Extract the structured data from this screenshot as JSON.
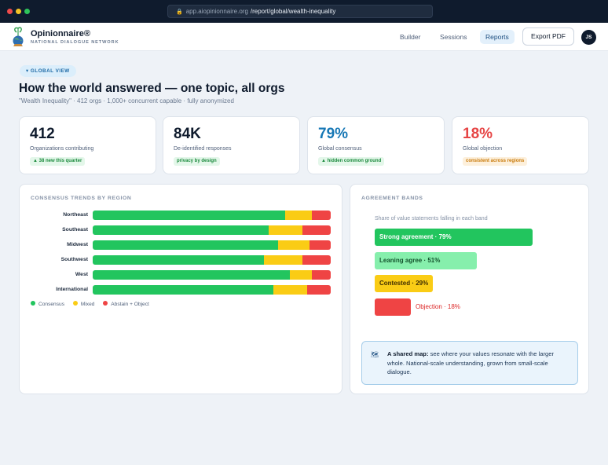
{
  "browser": {
    "url_host": "app.aiopinionnaire.org",
    "url_path": "/report/global/wealth-inequality"
  },
  "brand": {
    "name": "Opinionnaire®",
    "tagline": "NATIONAL DIALOGUE NETWORK"
  },
  "nav": {
    "items": [
      {
        "label": "Builder",
        "active": false
      },
      {
        "label": "Sessions",
        "active": false
      },
      {
        "label": "Reports",
        "active": true
      }
    ],
    "export_label": "Export PDF",
    "avatar_initials": "JS"
  },
  "page": {
    "view_pill": "▾ GLOBAL VIEW",
    "title": "How the world answered — one topic, all orgs",
    "subtitle": "\"Wealth Inequality\" · 412 orgs · 1,000+ concurrent capable · fully anonymized"
  },
  "stats": [
    {
      "value": "412",
      "label": "Organizations contributing",
      "tag": "▲ 38 new this quarter",
      "value_color": "#0f1b2d",
      "tag_style": "green"
    },
    {
      "value": "84K",
      "label": "De-identified responses",
      "tag": "privacy by design",
      "value_color": "#0f1b2d",
      "tag_style": "green"
    },
    {
      "value": "79%",
      "label": "Global consensus",
      "tag": "▲ hidden common ground",
      "value_color": "#1677b5",
      "tag_style": "green"
    },
    {
      "value": "18%",
      "label": "Global objection",
      "tag": "consistent across regions",
      "value_color": "#e64545",
      "tag_style": "orange"
    }
  ],
  "trends": {
    "title": "CONSENSUS TRENDS BY REGION",
    "colors": {
      "consensus": "#22c55e",
      "mixed": "#facc15",
      "objection": "#ef4444"
    },
    "regions": [
      {
        "name": "Northeast",
        "consensus": 81,
        "mixed": 11,
        "objection": 8
      },
      {
        "name": "Southeast",
        "consensus": 74,
        "mixed": 14,
        "objection": 12
      },
      {
        "name": "Midwest",
        "consensus": 78,
        "mixed": 13,
        "objection": 9
      },
      {
        "name": "Southwest",
        "consensus": 72,
        "mixed": 16,
        "objection": 12
      },
      {
        "name": "West",
        "consensus": 83,
        "mixed": 9,
        "objection": 8
      },
      {
        "name": "International",
        "consensus": 76,
        "mixed": 14,
        "objection": 10
      }
    ],
    "legend": {
      "consensus": "Consensus",
      "mixed": "Mixed",
      "objection": "Abstain + Object"
    }
  },
  "bands": {
    "title": "AGREEMENT BANDS",
    "caption": "Share of value statements falling in each band",
    "items": [
      {
        "label": "Strong agreement · 79%",
        "value": 79,
        "bg": "#22c55e",
        "color": "#ffffff"
      },
      {
        "label": "Leaning agree · 51%",
        "value": 51,
        "bg": "#86efac",
        "color": "#14532d"
      },
      {
        "label": "Contested · 29%",
        "value": 29,
        "bg": "#facc15",
        "color": "#3f2d00"
      },
      {
        "label": "Objection · 18%",
        "value": 18,
        "bg": "#ef4444",
        "color": "#dc2626",
        "label_outside": true
      }
    ]
  },
  "note": {
    "icon": "map-icon",
    "bold": "A shared map:",
    "text": " see where your values resonate with the larger whole. National-scale understanding, grown from small-scale dialogue."
  }
}
